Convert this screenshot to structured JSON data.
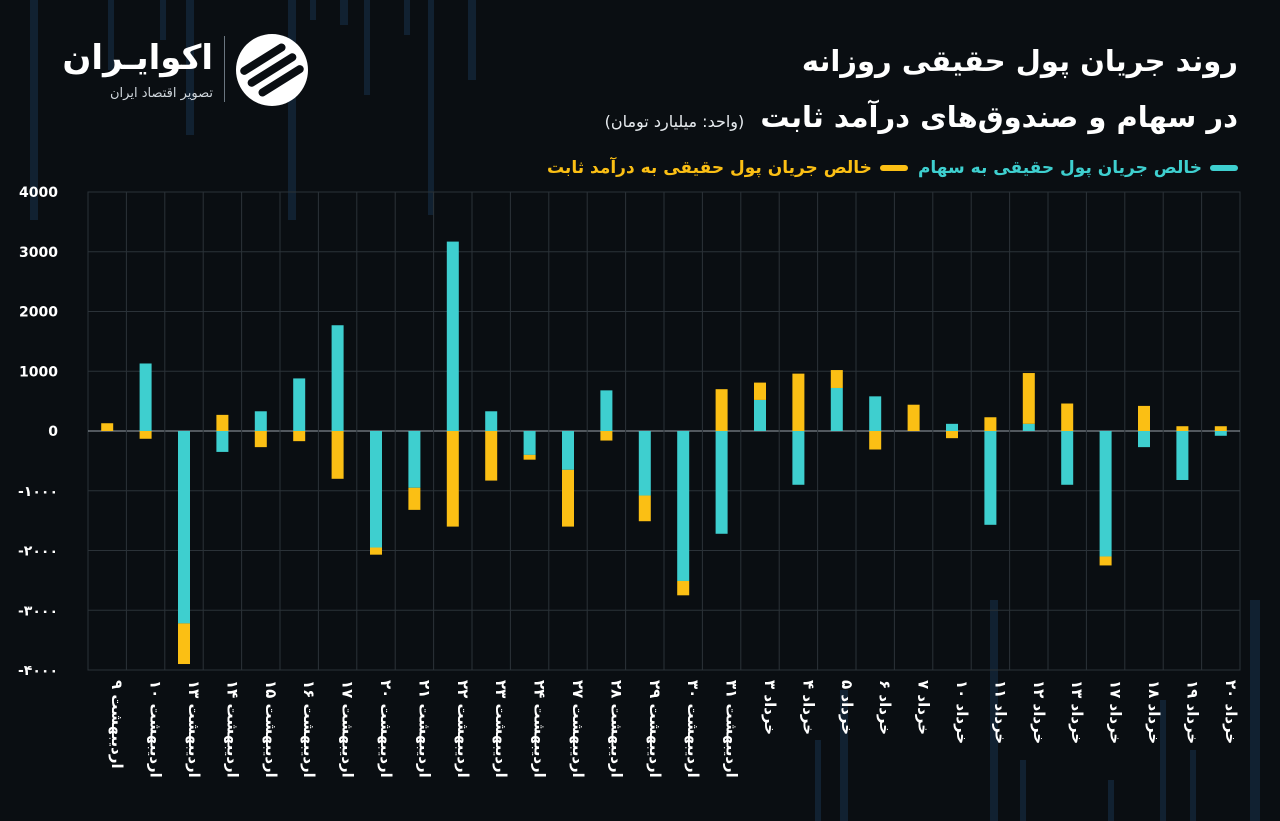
{
  "brand": {
    "name": "اکوایـران",
    "tagline": "تصویر اقتصاد ایران"
  },
  "header": {
    "title_line1": "روند جریان پول حقیقی روزانه",
    "title_line2": "در سهام و صندوق‌های درآمد ثابت",
    "unit": "(واحد: میلیارد تومان)"
  },
  "legend": {
    "stocks_label": "خالص جریان پول حقیقی به سهام",
    "fixed_label": "خالص جریان پول حقیقی به درآمد ثابت"
  },
  "colors": {
    "stocks": "#3ecfcf",
    "fixed_income": "#fbbf14",
    "background": "#0a0e12",
    "grid": "#2b3238"
  },
  "chart_data": {
    "type": "bar",
    "stacked": true,
    "title": "روند جریان پول حقیقی روزانه در سهام و صندوق‌های درآمد ثابت",
    "ylim": [
      -4000,
      4000
    ],
    "yticks": [
      "-۴۰۰۰",
      "-۳۰۰۰",
      "-۲۰۰۰",
      "-۱۰۰۰",
      "0",
      "1000",
      "2000",
      "3000",
      "4000"
    ],
    "ytick_values": [
      -4000,
      -3000,
      -2000,
      -1000,
      0,
      1000,
      2000,
      3000,
      4000
    ],
    "grid": true,
    "legend_position": "top-right",
    "categories": [
      "۹ اردیبهشت",
      "۱۰ اردیبهشت",
      "۱۳ اردیبهشت",
      "۱۴ اردیبهشت",
      "۱۵ اردیبهشت",
      "۱۶ اردیبهشت",
      "۱۷ اردیبهشت",
      "۲۰ اردیبهشت",
      "۲۱ اردیبهشت",
      "۲۲ اردیبهشت",
      "۲۳ اردیبهشت",
      "۲۴ اردیبهشت",
      "۲۷ اردیبهشت",
      "۲۸ اردیبهشت",
      "۲۹ اردیبهشت",
      "۳۰ اردیبهشت",
      "۳۱ اردیبهشت",
      "۳ خرداد",
      "۴ خرداد",
      "۵ خرداد",
      "۶ خرداد",
      "۷ خرداد",
      "۱۰ خرداد",
      "۱۱ خرداد",
      "۱۲ خرداد",
      "۱۳ خرداد",
      "۱۷ خرداد",
      "۱۸ خرداد",
      "۱۹ خرداد",
      "۲۰ خرداد"
    ],
    "series": [
      {
        "name": "خالص جریان پول حقیقی به سهام",
        "color": "#3ecfcf",
        "values": [
          0,
          1130,
          -3220,
          -350,
          330,
          880,
          1770,
          -1950,
          -950,
          3170,
          330,
          -400,
          -650,
          680,
          -1080,
          -2510,
          -1720,
          520,
          -900,
          720,
          580,
          0,
          120,
          -1570,
          120,
          -900,
          -2100,
          -270,
          -820,
          -80
        ]
      },
      {
        "name": "خالص جریان پول حقیقی به درآمد ثابت",
        "color": "#fbbf14",
        "values": [
          130,
          -130,
          -680,
          270,
          -270,
          -170,
          -800,
          -120,
          -370,
          -1600,
          -830,
          -80,
          -950,
          -160,
          -430,
          -240,
          700,
          290,
          960,
          300,
          -310,
          440,
          -120,
          230,
          850,
          460,
          -150,
          420,
          80,
          80
        ]
      }
    ]
  }
}
